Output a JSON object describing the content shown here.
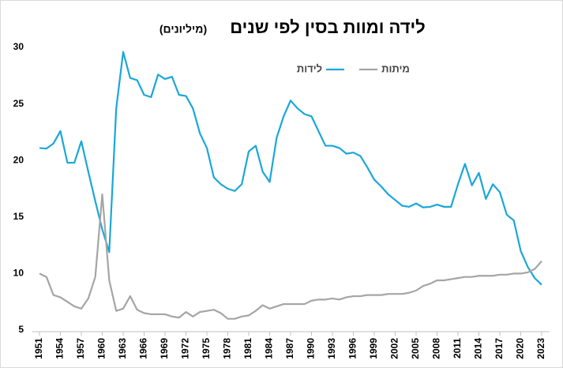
{
  "chart_data": {
    "type": "line",
    "title": "לידה ומוות בסין לפי שנים",
    "subtitle": "(מיליונים)",
    "x": [
      1951,
      1952,
      1953,
      1954,
      1955,
      1956,
      1957,
      1958,
      1959,
      1960,
      1961,
      1962,
      1963,
      1964,
      1965,
      1966,
      1967,
      1968,
      1969,
      1970,
      1971,
      1972,
      1973,
      1974,
      1975,
      1976,
      1977,
      1978,
      1979,
      1980,
      1981,
      1982,
      1983,
      1984,
      1985,
      1986,
      1987,
      1988,
      1989,
      1990,
      1991,
      1992,
      1993,
      1994,
      1995,
      1996,
      1997,
      1998,
      1999,
      2000,
      2001,
      2002,
      2003,
      2004,
      2005,
      2006,
      2007,
      2008,
      2009,
      2010,
      2011,
      2012,
      2013,
      2014,
      2015,
      2016,
      2017,
      2018,
      2019,
      2020,
      2021,
      2022,
      2023
    ],
    "series": [
      {
        "name": "לידות",
        "color": "#1aa7d9",
        "values": [
          21.1,
          21.05,
          21.5,
          22.6,
          19.8,
          19.8,
          21.7,
          19.0,
          16.4,
          13.9,
          11.9,
          24.6,
          29.6,
          27.3,
          27.1,
          25.8,
          25.6,
          27.6,
          27.2,
          27.4,
          25.8,
          25.7,
          24.6,
          22.4,
          21.1,
          18.5,
          17.9,
          17.5,
          17.3,
          17.9,
          20.8,
          21.3,
          19.0,
          18.1,
          22.0,
          23.9,
          25.3,
          24.6,
          24.1,
          23.9,
          22.6,
          21.3,
          21.3,
          21.1,
          20.6,
          20.7,
          20.4,
          19.4,
          18.3,
          17.7,
          17.0,
          16.5,
          16.0,
          15.9,
          16.2,
          15.85,
          15.9,
          16.1,
          15.9,
          15.9,
          17.9,
          19.7,
          17.8,
          18.9,
          16.6,
          17.9,
          17.2,
          15.2,
          14.7,
          12.0,
          10.6,
          9.6,
          9.0
        ]
      },
      {
        "name": "מיתות",
        "color": "#a5a5a5",
        "values": [
          10.0,
          9.7,
          8.1,
          7.9,
          7.5,
          7.1,
          6.9,
          7.8,
          9.7,
          17.0,
          9.4,
          6.7,
          6.9,
          8.0,
          6.8,
          6.5,
          6.4,
          6.4,
          6.4,
          6.2,
          6.1,
          6.6,
          6.2,
          6.6,
          6.7,
          6.8,
          6.5,
          6.0,
          6.0,
          6.2,
          6.3,
          6.7,
          7.2,
          6.9,
          7.1,
          7.3,
          7.3,
          7.3,
          7.3,
          7.6,
          7.7,
          7.7,
          7.8,
          7.7,
          7.9,
          8.0,
          8.0,
          8.1,
          8.1,
          8.1,
          8.2,
          8.2,
          8.2,
          8.3,
          8.5,
          8.9,
          9.1,
          9.4,
          9.4,
          9.5,
          9.6,
          9.7,
          9.7,
          9.8,
          9.8,
          9.8,
          9.9,
          9.9,
          10.0,
          10.0,
          10.1,
          10.4,
          11.1
        ]
      }
    ],
    "xlim": [
      1950.5,
      2023.5
    ],
    "xticks": [
      1951,
      1954,
      1957,
      1960,
      1963,
      1966,
      1969,
      1972,
      1975,
      1978,
      1981,
      1984,
      1987,
      1990,
      1993,
      1996,
      1999,
      2002,
      2005,
      2008,
      2011,
      2014,
      2017,
      2020,
      2023
    ],
    "ylim": [
      5,
      30
    ],
    "yticks": [
      5,
      10,
      15,
      20,
      25,
      30
    ],
    "grid": false,
    "legend": "top"
  }
}
